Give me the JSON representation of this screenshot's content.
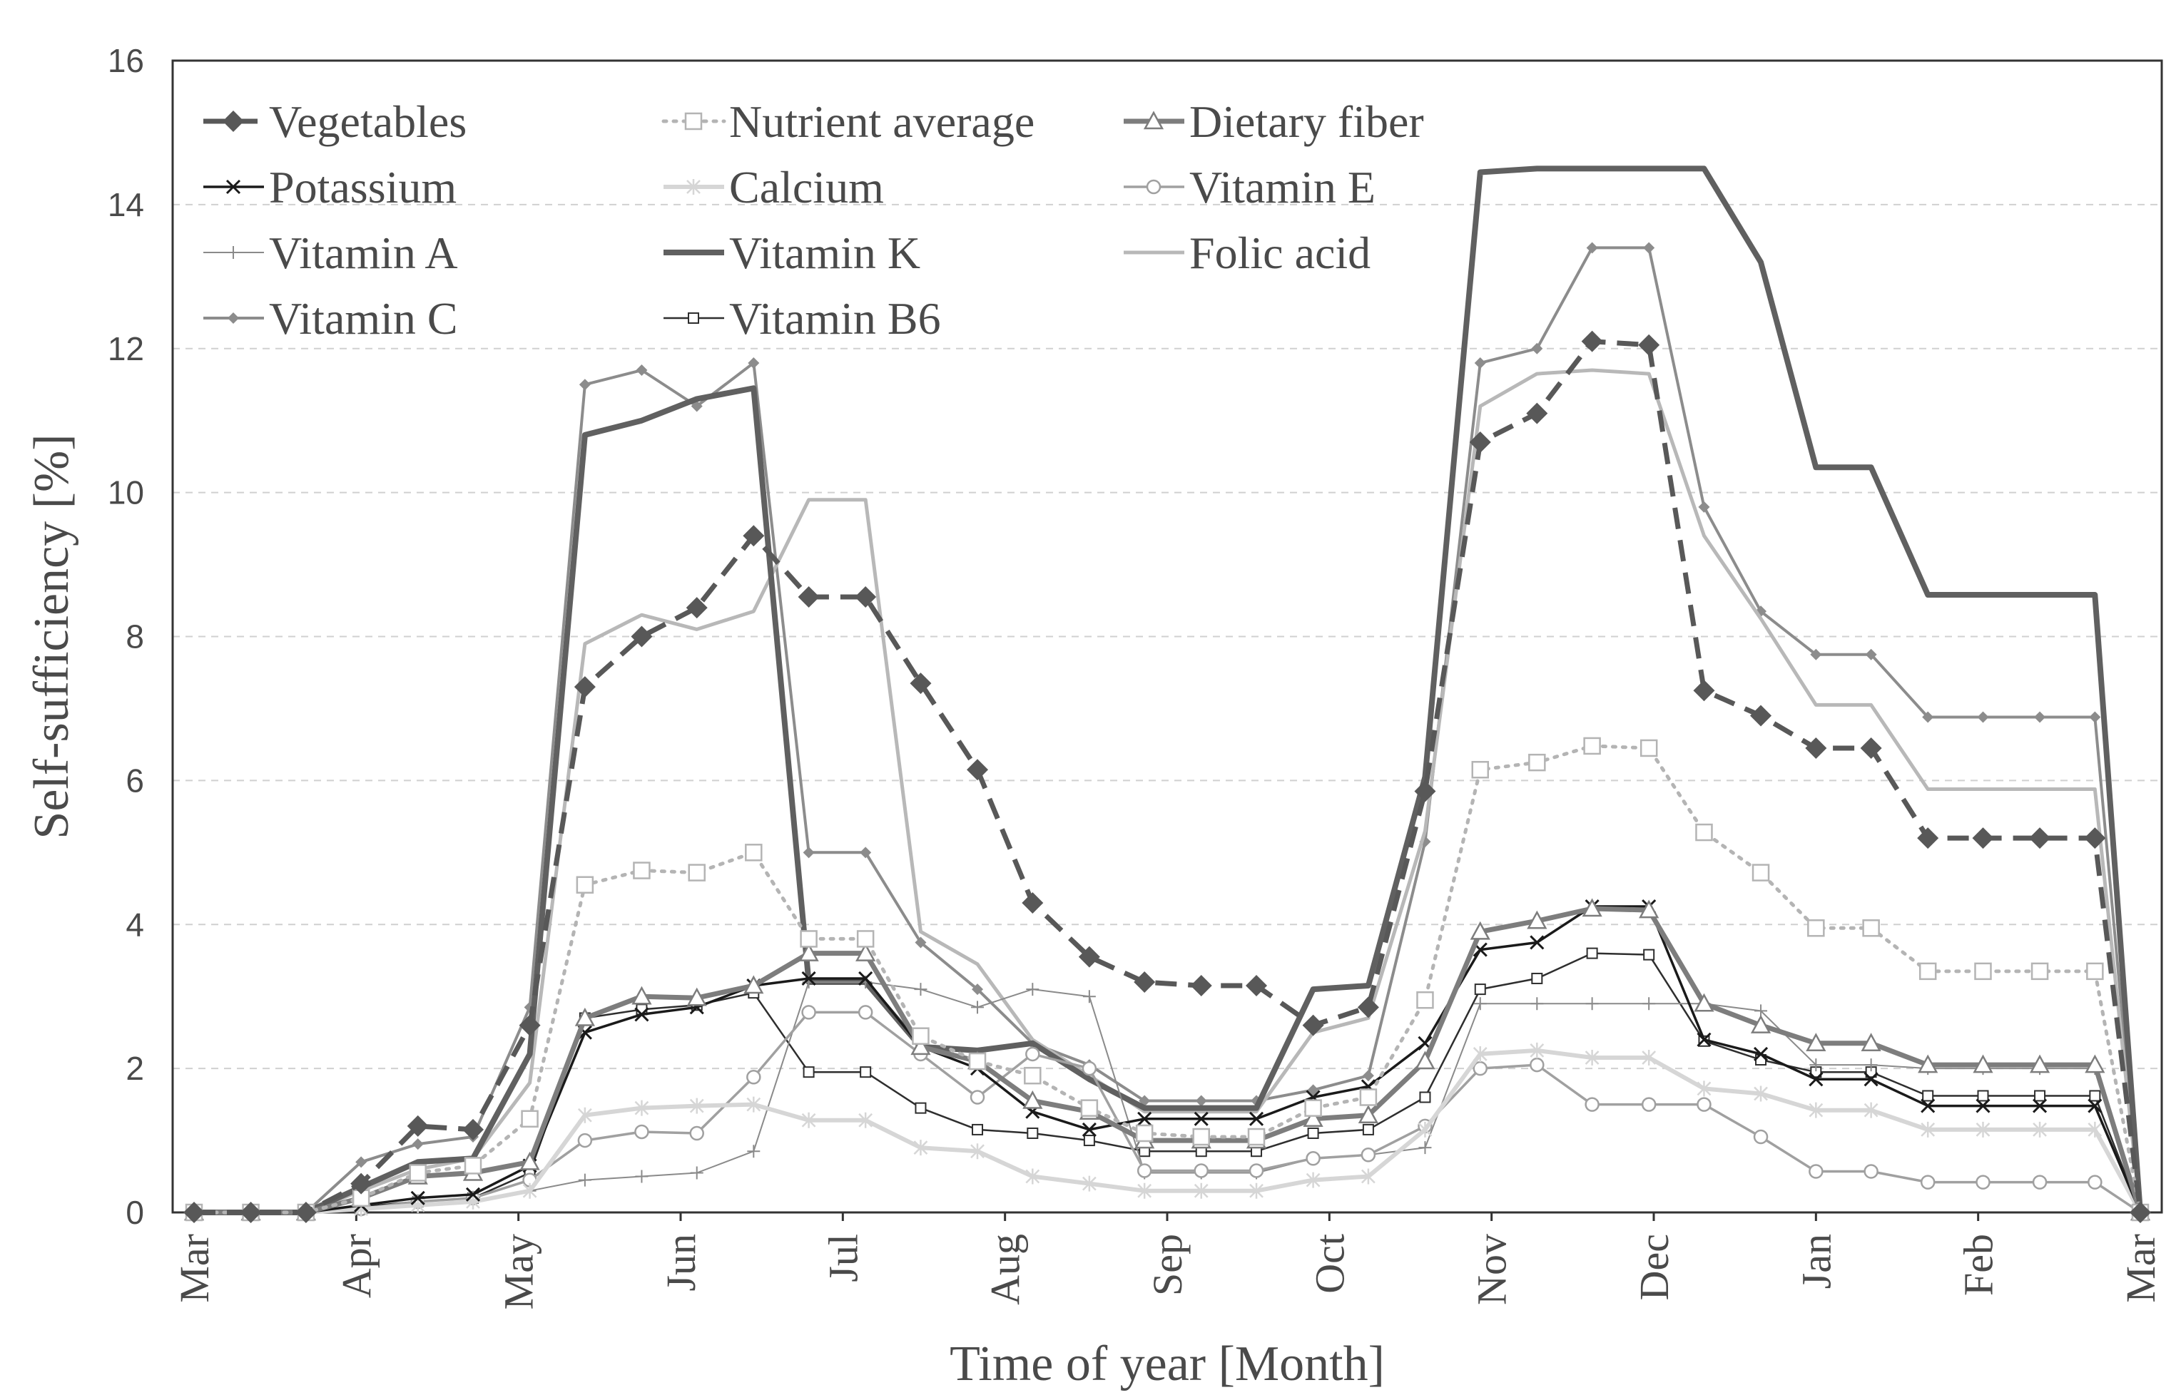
{
  "chart_data": {
    "type": "line",
    "xlabel": "Time of year [Month]",
    "ylabel": "Self-sufficiency [%]",
    "ylim": [
      0,
      16
    ],
    "yticks": [
      0,
      2,
      4,
      6,
      8,
      10,
      12,
      14,
      16
    ],
    "xlim": [
      0,
      12
    ],
    "month_labels": [
      "Mar",
      "Apr",
      "May",
      "Jun",
      "Jul",
      "Aug",
      "Sep",
      "Oct",
      "Nov",
      "Dec",
      "Jan",
      "Feb",
      "Mar"
    ],
    "grid": "horizontal dashed",
    "legend_position": "top-left",
    "x": [
      0.0,
      0.35,
      0.69,
      1.03,
      1.38,
      1.72,
      2.07,
      2.41,
      2.76,
      3.1,
      3.45,
      3.79,
      4.14,
      4.48,
      4.83,
      5.17,
      5.52,
      5.86,
      6.21,
      6.55,
      6.9,
      7.24,
      7.59,
      7.93,
      8.28,
      8.62,
      8.97,
      9.31,
      9.66,
      10.0,
      10.34,
      10.69,
      11.03,
      11.38,
      11.72,
      12.0
    ],
    "series": [
      {
        "name": "Vegetables",
        "color": "#585858",
        "values": [
          0,
          0,
          0,
          0.4,
          1.2,
          1.15,
          2.6,
          7.3,
          8.0,
          8.4,
          9.4,
          8.55,
          8.55,
          7.35,
          6.15,
          4.3,
          3.55,
          3.2,
          3.15,
          3.15,
          2.6,
          2.85,
          5.85,
          10.7,
          11.1,
          12.1,
          12.05,
          7.25,
          6.9,
          6.45,
          6.45,
          5.2,
          5.2,
          5.2,
          5.2,
          0
        ]
      },
      {
        "name": "Nutrient average",
        "color": "#b4b4b4",
        "values": [
          0,
          0,
          0,
          0.2,
          0.55,
          0.65,
          1.3,
          4.55,
          4.75,
          4.72,
          5.0,
          3.8,
          3.8,
          2.45,
          2.1,
          1.9,
          1.45,
          1.1,
          1.05,
          1.05,
          1.45,
          1.6,
          2.95,
          6.15,
          6.25,
          6.48,
          6.45,
          5.28,
          4.72,
          3.95,
          3.95,
          3.35,
          3.35,
          3.35,
          3.35,
          0
        ]
      },
      {
        "name": "Dietary fiber",
        "color": "#7d7d7d",
        "values": [
          0,
          0,
          0,
          0.2,
          0.5,
          0.55,
          0.7,
          2.7,
          3.0,
          2.98,
          3.15,
          3.6,
          3.6,
          2.3,
          2.1,
          1.55,
          1.4,
          1.0,
          1.0,
          1.0,
          1.3,
          1.35,
          2.1,
          3.9,
          4.05,
          4.22,
          4.2,
          2.9,
          2.6,
          2.35,
          2.35,
          2.05,
          2.05,
          2.05,
          2.05,
          0
        ]
      },
      {
        "name": "Potassium",
        "color": "#1a1a1a",
        "values": [
          0,
          0,
          0,
          0.1,
          0.2,
          0.25,
          0.65,
          2.5,
          2.75,
          2.85,
          3.15,
          3.25,
          3.25,
          2.3,
          2.0,
          1.4,
          1.15,
          1.3,
          1.3,
          1.3,
          1.6,
          1.75,
          2.35,
          3.65,
          3.75,
          4.25,
          4.25,
          2.4,
          2.2,
          1.85,
          1.85,
          1.48,
          1.48,
          1.48,
          1.48,
          0
        ]
      },
      {
        "name": "Calcium",
        "color": "#d6d6d6",
        "values": [
          0,
          0,
          0,
          0.05,
          0.1,
          0.15,
          0.3,
          1.35,
          1.45,
          1.48,
          1.5,
          1.28,
          1.28,
          0.9,
          0.85,
          0.5,
          0.4,
          0.3,
          0.3,
          0.3,
          0.45,
          0.5,
          1.15,
          2.2,
          2.25,
          2.15,
          2.15,
          1.72,
          1.65,
          1.42,
          1.42,
          1.15,
          1.15,
          1.15,
          1.15,
          0
        ]
      },
      {
        "name": "Vitamin E",
        "color": "#a0a0a0",
        "values": [
          0,
          0,
          0,
          0.05,
          0.15,
          0.2,
          0.45,
          1.0,
          1.12,
          1.1,
          1.88,
          2.78,
          2.78,
          2.2,
          1.6,
          2.2,
          2.0,
          0.58,
          0.58,
          0.58,
          0.75,
          0.8,
          1.2,
          2.0,
          2.05,
          1.5,
          1.5,
          1.5,
          1.05,
          0.57,
          0.57,
          0.42,
          0.42,
          0.42,
          0.42,
          0
        ]
      },
      {
        "name": "Vitamin A",
        "color": "#8a8a8a",
        "values": [
          0,
          0,
          0,
          0.05,
          0.1,
          0.15,
          0.3,
          0.45,
          0.5,
          0.55,
          0.85,
          3.2,
          3.2,
          3.1,
          2.85,
          3.1,
          3.0,
          0.55,
          0.55,
          0.55,
          0.75,
          0.8,
          0.9,
          2.9,
          2.9,
          2.9,
          2.9,
          2.9,
          2.8,
          2.05,
          2.05,
          2.0,
          2.0,
          2.0,
          2.0,
          0
        ]
      },
      {
        "name": "Vitamin K",
        "color": "#606060",
        "values": [
          0,
          0,
          0,
          0.35,
          0.7,
          0.75,
          2.2,
          10.8,
          11.0,
          11.3,
          11.45,
          3.2,
          3.2,
          2.3,
          2.25,
          2.35,
          1.85,
          1.45,
          1.45,
          1.45,
          3.1,
          3.15,
          6.05,
          14.45,
          14.5,
          14.5,
          14.5,
          14.5,
          13.2,
          10.35,
          10.35,
          8.58,
          8.58,
          8.58,
          8.58,
          0
        ]
      },
      {
        "name": "Folic acid",
        "color": "#b8b8b8",
        "values": [
          0,
          0,
          0,
          0.3,
          0.6,
          0.75,
          1.8,
          7.9,
          8.3,
          8.1,
          8.35,
          9.9,
          9.9,
          3.9,
          3.45,
          2.4,
          1.9,
          1.4,
          1.4,
          1.4,
          2.5,
          2.7,
          5.3,
          11.2,
          11.65,
          11.7,
          11.65,
          9.4,
          8.25,
          7.05,
          7.05,
          5.88,
          5.88,
          5.88,
          5.88,
          0
        ]
      },
      {
        "name": "Vitamin C",
        "color": "#8c8c8c",
        "values": [
          0,
          0,
          0,
          0.7,
          0.95,
          1.05,
          2.85,
          11.5,
          11.7,
          11.2,
          11.8,
          5.0,
          5.0,
          3.75,
          3.1,
          2.35,
          2.05,
          1.55,
          1.55,
          1.55,
          1.7,
          1.9,
          5.15,
          11.8,
          12.0,
          13.4,
          13.4,
          9.8,
          8.35,
          7.75,
          7.75,
          6.88,
          6.88,
          6.88,
          6.88,
          0
        ]
      },
      {
        "name": "Vitamin B6",
        "color": "#2e2e2e",
        "values": [
          0,
          0,
          0,
          0.08,
          0.15,
          0.2,
          0.55,
          2.7,
          2.82,
          2.88,
          3.05,
          1.95,
          1.95,
          1.45,
          1.15,
          1.1,
          1.0,
          0.85,
          0.85,
          0.85,
          1.1,
          1.15,
          1.6,
          3.1,
          3.25,
          3.6,
          3.58,
          2.38,
          2.12,
          1.95,
          1.95,
          1.62,
          1.62,
          1.62,
          1.62,
          0
        ]
      }
    ]
  }
}
